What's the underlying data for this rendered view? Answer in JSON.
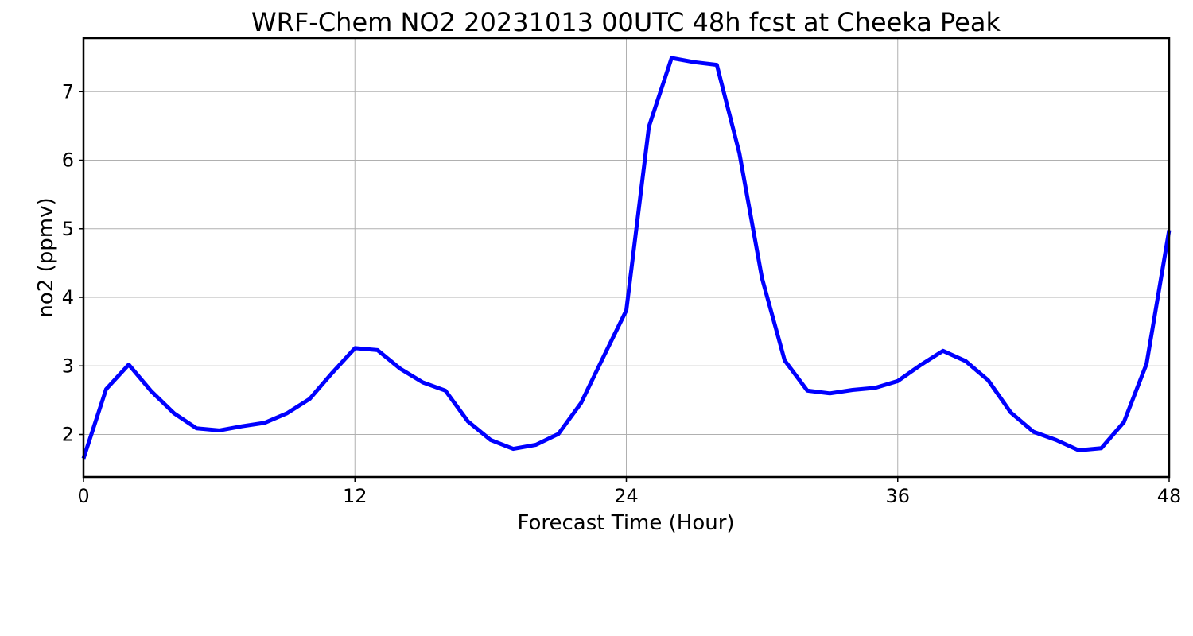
{
  "chart_data": {
    "type": "line",
    "title": "WRF-Chem NO2  20231013 00UTC 48h fcst at Cheeka Peak",
    "xlabel": "Forecast Time (Hour)",
    "ylabel": "no2  (ppmv)",
    "xlim": [
      0,
      48
    ],
    "ylim": [
      1.38,
      7.78
    ],
    "xticks": [
      0,
      12,
      24,
      36,
      48
    ],
    "yticks": [
      2,
      3,
      4,
      5,
      6,
      7
    ],
    "xtick_labels": [
      "0",
      "12",
      "24",
      "36",
      "48"
    ],
    "ytick_labels": [
      "2",
      "3",
      "4",
      "5",
      "6",
      "7"
    ],
    "grid": true,
    "series": [
      {
        "color": "#0000ff",
        "x": [
          0,
          1,
          2,
          3,
          4,
          5,
          6,
          7,
          8,
          9,
          10,
          11,
          12,
          13,
          14,
          15,
          16,
          17,
          18,
          19,
          20,
          21,
          22,
          23,
          24,
          25,
          26,
          27,
          28,
          29,
          30,
          31,
          32,
          33,
          34,
          35,
          36,
          37,
          38,
          39,
          40,
          41,
          42,
          43,
          44,
          45,
          46,
          47,
          48
        ],
        "values": [
          1.65,
          2.66,
          3.02,
          2.63,
          2.31,
          2.09,
          2.06,
          2.12,
          2.17,
          2.31,
          2.52,
          2.9,
          3.26,
          3.23,
          2.96,
          2.76,
          2.64,
          2.19,
          1.92,
          1.79,
          1.85,
          2.01,
          2.46,
          3.14,
          3.81,
          6.49,
          7.49,
          7.43,
          7.39,
          6.1,
          4.28,
          3.08,
          2.64,
          2.6,
          2.65,
          2.68,
          2.78,
          3.01,
          3.22,
          3.07,
          2.79,
          2.32,
          2.04,
          1.92,
          1.77,
          1.8,
          2.18,
          3.03,
          4.98
        ]
      }
    ]
  }
}
